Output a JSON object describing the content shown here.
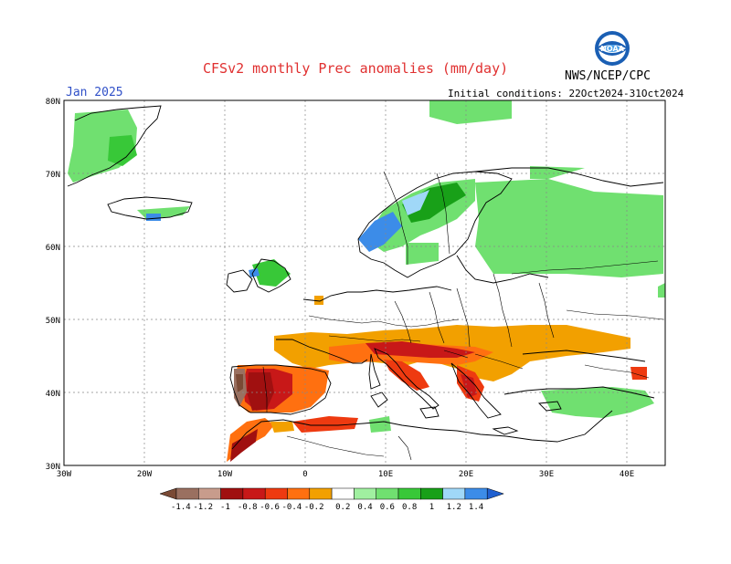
{
  "header": {
    "title": "CFSv2 monthly Prec anomalies (mm/day)",
    "month": "Jan 2025",
    "initial_conditions": "Initial conditions: 22Oct2024-31Oct2024",
    "organization": "NWS/NCEP/CPC",
    "logo_text": "NOAA"
  },
  "axes": {
    "lat_labels": [
      "80N",
      "70N",
      "60N",
      "50N",
      "40N",
      "30N"
    ],
    "lon_labels": [
      "30W",
      "20W",
      "10W",
      "0",
      "10E",
      "20E",
      "30E",
      "40E"
    ],
    "lat_range": [
      30,
      80
    ],
    "lon_range": [
      -30,
      45
    ]
  },
  "colorbar": {
    "labels": [
      "-1.4",
      "-1.2",
      "-1",
      "-0.8",
      "-0.6",
      "-0.4",
      "-0.2",
      "0.2",
      "0.4",
      "0.6",
      "0.8",
      "1",
      "1.2",
      "1.4"
    ],
    "colors": [
      "#7a4a35",
      "#9a7060",
      "#c89c8c",
      "#a01010",
      "#c81818",
      "#ee3a10",
      "#ff7010",
      "#f2a000",
      "#ffffff",
      "#a0f0a0",
      "#70e070",
      "#38c838",
      "#18a018",
      "#a0d8f8",
      "#3c8ce8",
      "#2060d0"
    ]
  },
  "legend_colors": {
    "title": "#e03030",
    "month": "#3050c8"
  }
}
